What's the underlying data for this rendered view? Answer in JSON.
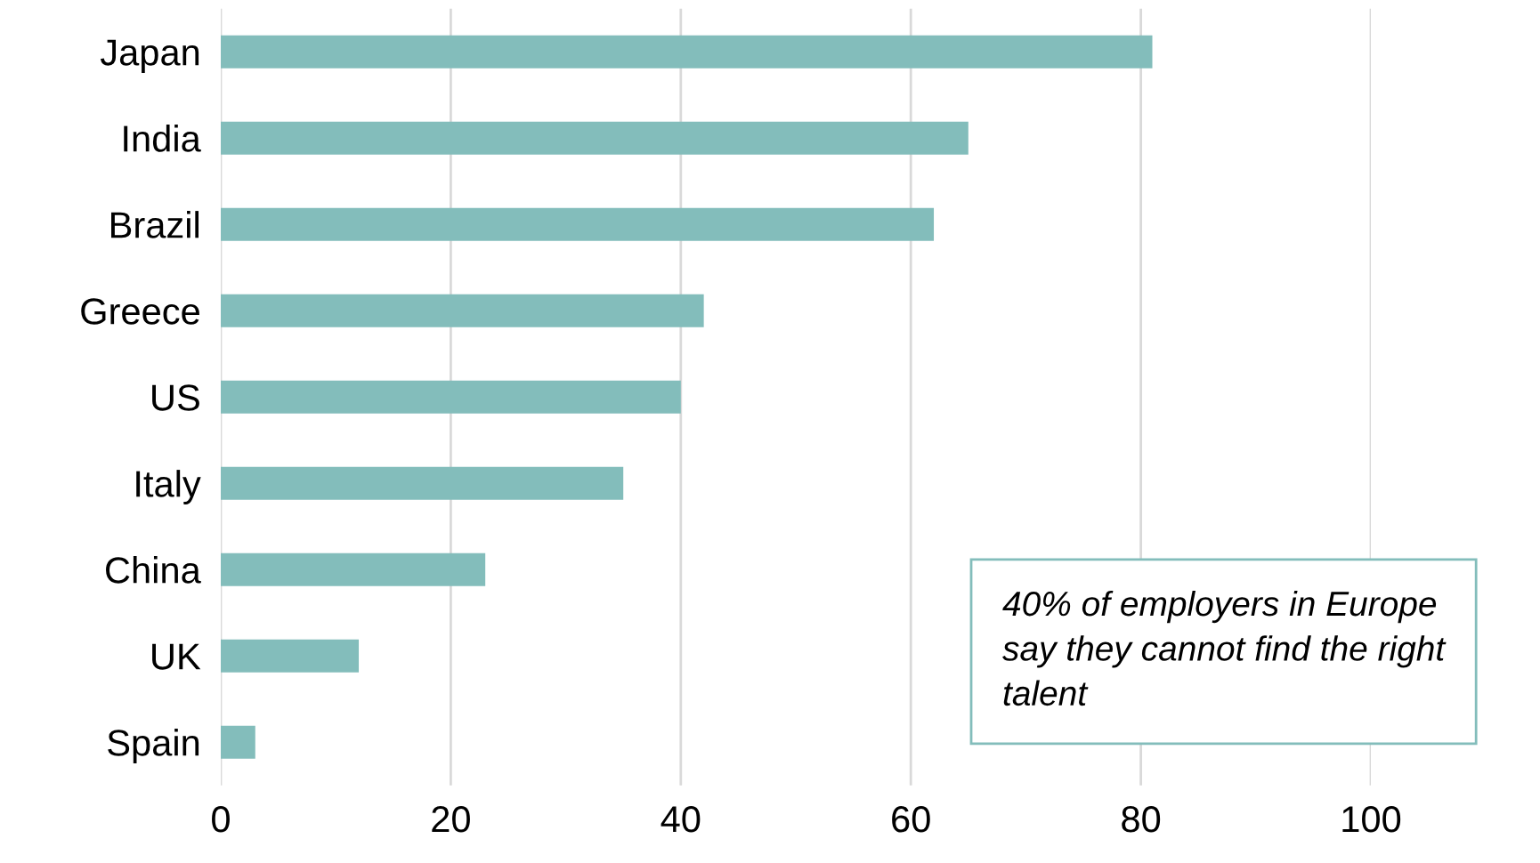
{
  "chart_data": {
    "type": "bar",
    "orientation": "horizontal",
    "categories": [
      "Japan",
      "India",
      "Brazil",
      "Greece",
      "US",
      "Italy",
      "China",
      "UK",
      "Spain"
    ],
    "values": [
      81,
      65,
      62,
      42,
      40,
      35,
      23,
      12,
      3
    ],
    "color": "#83bdbb",
    "xlim": [
      0,
      100
    ],
    "xticks": [
      0,
      20,
      40,
      60,
      80,
      100
    ],
    "grid": "x",
    "annotations": [
      "40% of employers in Europe say they cannot find the right talent"
    ]
  }
}
